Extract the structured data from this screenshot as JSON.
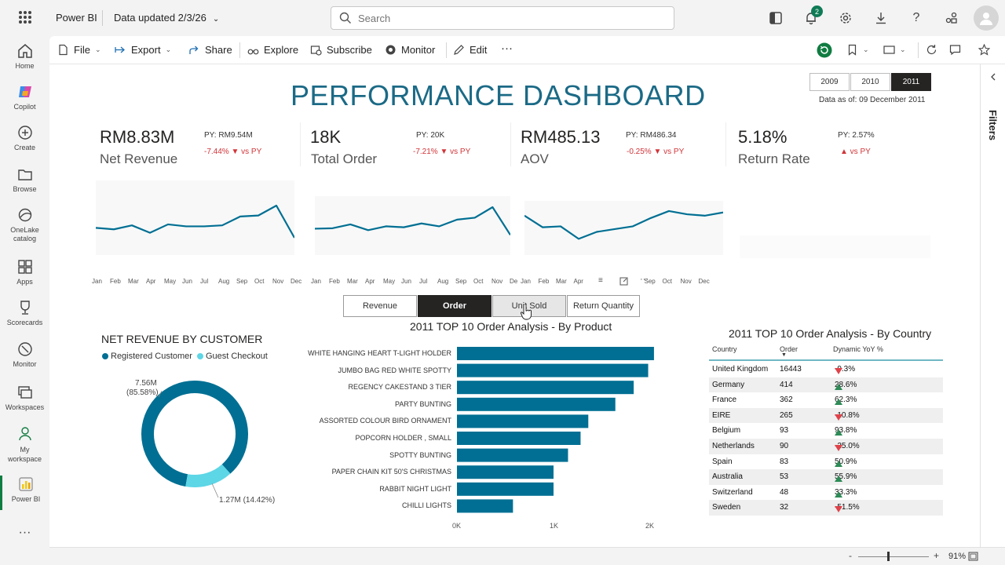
{
  "topbar": {
    "app_name": "Power BI",
    "data_updated": "Data updated 2/3/26",
    "search_placeholder": "Search",
    "notification_count": "2"
  },
  "leftnav": {
    "items": [
      {
        "label": "Home",
        "icon": "home-icon"
      },
      {
        "label": "Copilot",
        "icon": "copilot-icon"
      },
      {
        "label": "Create",
        "icon": "plus-icon"
      },
      {
        "label": "Browse",
        "icon": "folder-icon"
      },
      {
        "label": "OneLake catalog",
        "icon": "onelake-icon"
      },
      {
        "label": "Apps",
        "icon": "apps-icon"
      },
      {
        "label": "Scorecards",
        "icon": "trophy-icon"
      },
      {
        "label": "Monitor",
        "icon": "monitor-icon"
      },
      {
        "label": "Workspaces",
        "icon": "workspaces-icon"
      },
      {
        "label": "My workspace",
        "icon": "person-icon"
      },
      {
        "label": "Power BI",
        "icon": "powerbi-icon"
      }
    ],
    "more": "···"
  },
  "ribbon": {
    "file": "File",
    "export": "Export",
    "share": "Share",
    "explore": "Explore",
    "subscribe": "Subscribe",
    "monitor": "Monitor",
    "edit": "Edit",
    "more": "···"
  },
  "filters_label": "Filters",
  "dashboard": {
    "title": "PERFORMANCE DASHBOARD",
    "years": [
      "2009",
      "2010",
      "2011"
    ],
    "selected_year": "2011",
    "data_asof": "Data as of: 09 December 2011",
    "kpis": [
      {
        "value": "RM8.83M",
        "label": "Net Revenue",
        "py": "PY: RM9.54M",
        "change": "-7.44% ▼ vs PY"
      },
      {
        "value": "18K",
        "label": "Total Order",
        "py": "PY: 20K",
        "change": "-7.21% ▼ vs PY"
      },
      {
        "value": "RM485.13",
        "label": "AOV",
        "py": "PY: RM486.34",
        "change": "-0.25% ▼ vs PY"
      },
      {
        "value": "5.18%",
        "label": "Return Rate",
        "py": "PY: 2.57%",
        "change": "▲ vs PY"
      }
    ],
    "months": [
      "Jan",
      "Feb",
      "Mar",
      "Apr",
      "May",
      "Jun",
      "Jul",
      "Aug",
      "Sep",
      "Oct",
      "Nov",
      "Dec"
    ],
    "months_partial": [
      "Jan",
      "Feb",
      "Mar",
      "Apr",
      "May",
      "Jun",
      "Jul",
      "Aug",
      "Sep",
      "Oct",
      "Nov",
      "De"
    ],
    "months_third": [
      "Jan",
      "Feb",
      "Mar",
      "Apr"
    ],
    "months_third_tail": [
      "Sep",
      "Oct",
      "Nov",
      "Dec"
    ],
    "measure_toggles": [
      "Revenue",
      "Order",
      "Unit Sold",
      "Return Quantity"
    ],
    "selected_measure": "Order",
    "colors": {
      "primary": "#006f93",
      "accent": "#5dd6e6",
      "title": "#1b6a86"
    }
  },
  "customer_chart": {
    "title": "NET REVENUE BY CUSTOMER",
    "legend": [
      "Registered Customer",
      "Guest Checkout"
    ],
    "label_registered_value": "7.56M",
    "label_registered_pct": "(85.58%)",
    "label_guest": "1.27M (14.42%)"
  },
  "product_chart": {
    "title": "2011 TOP 10 Order Analysis - By Product",
    "ticks": [
      "0K",
      "1K",
      "2K"
    ]
  },
  "country_table": {
    "title": "2011 TOP 10 Order Analysis - By Country",
    "headers": [
      "Country",
      "Order",
      "Dynamic YoY %"
    ],
    "rows": [
      {
        "country": "United Kingdom",
        "order": "16443",
        "yoy": "-9.3%",
        "dir": "down"
      },
      {
        "country": "Germany",
        "order": "414",
        "yoy": "28.6%",
        "dir": "up"
      },
      {
        "country": "France",
        "order": "362",
        "yoy": "62.3%",
        "dir": "up"
      },
      {
        "country": "EIRE",
        "order": "265",
        "yoy": "-10.8%",
        "dir": "down"
      },
      {
        "country": "Belgium",
        "order": "93",
        "yoy": "93.8%",
        "dir": "up"
      },
      {
        "country": "Netherlands",
        "order": "90",
        "yoy": "-25.0%",
        "dir": "down"
      },
      {
        "country": "Spain",
        "order": "83",
        "yoy": "50.9%",
        "dir": "up"
      },
      {
        "country": "Australia",
        "order": "53",
        "yoy": "55.9%",
        "dir": "up"
      },
      {
        "country": "Switzerland",
        "order": "48",
        "yoy": "33.3%",
        "dir": "up"
      },
      {
        "country": "Sweden",
        "order": "32",
        "yoy": "-51.5%",
        "dir": "down"
      }
    ]
  },
  "status": {
    "zoom": "91%"
  },
  "chart_data": [
    {
      "type": "line",
      "x": [
        "Jan",
        "Feb",
        "Mar",
        "Apr",
        "May",
        "Jun",
        "Jul",
        "Aug",
        "Sep",
        "Oct",
        "Nov",
        "Dec"
      ],
      "series": [
        {
          "values": [
            0.55,
            0.52,
            0.6,
            0.45,
            0.62,
            0.58,
            0.58,
            0.6,
            0.78,
            0.8,
            1.0,
            0.35
          ]
        }
      ]
    },
    {
      "type": "line",
      "x": [
        "Jan",
        "Feb",
        "Mar",
        "Apr",
        "May",
        "Jun",
        "Jul",
        "Aug",
        "Sep",
        "Oct",
        "Nov",
        "Dec"
      ],
      "series": [
        {
          "values": [
            0.55,
            0.56,
            0.64,
            0.52,
            0.6,
            0.58,
            0.66,
            0.6,
            0.74,
            0.78,
            1.0,
            0.42
          ]
        }
      ]
    },
    {
      "type": "line",
      "x": [
        "Jan",
        "Feb",
        "Mar",
        "Apr",
        "May",
        "Jun",
        "Jul",
        "Aug",
        "Sep",
        "Oct",
        "Nov",
        "Dec"
      ],
      "series": [
        {
          "values": [
            0.85,
            0.6,
            0.62,
            0.35,
            0.5,
            0.56,
            0.62,
            0.8,
            0.95,
            0.88,
            0.85,
            0.92
          ]
        }
      ]
    },
    {
      "type": "pie",
      "categories": [
        "Registered Customer",
        "Guest Checkout"
      ],
      "values": [
        85.58,
        14.42
      ],
      "colors": [
        "#006f93",
        "#5dd6e6"
      ]
    },
    {
      "type": "bar",
      "title": "2011 TOP 10 Order Analysis - By Product",
      "categories": [
        "WHITE HANGING HEART T-LIGHT HOLDER",
        "JUMBO BAG RED WHITE SPOTTY",
        "REGENCY CAKESTAND 3 TIER",
        "PARTY BUNTING",
        "ASSORTED COLOUR BIRD ORNAMENT",
        "POPCORN HOLDER , SMALL",
        "SPOTTY BUNTING",
        "PAPER CHAIN KIT 50'S CHRISTMAS",
        "RABBIT NIGHT LIGHT",
        "CHILLI LIGHTS"
      ],
      "values": [
        2040,
        1980,
        1830,
        1640,
        1360,
        1280,
        1150,
        1000,
        1000,
        580
      ],
      "xlim": [
        0,
        2000
      ],
      "orientation": "horizontal"
    }
  ]
}
